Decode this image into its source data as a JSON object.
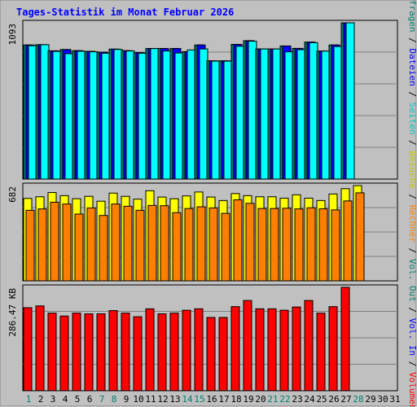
{
  "title": "Tages-Statistik im Monat Februar 2026",
  "colors": {
    "background": "#c0c0c0",
    "frame": "#808080",
    "title": "#0000ff",
    "hits": "#00806e",
    "files": "#0000ff",
    "pages": "#00ffff",
    "visits": "#ffff00",
    "sites": "#ff8000",
    "kbytes": "#ff0000",
    "weekend": "#00806e",
    "weekday": "#000000"
  },
  "right_legend": {
    "top": [
      {
        "text": "Anfragen",
        "color": "#00806e"
      },
      {
        "text": " / ",
        "color": "#000000"
      },
      {
        "text": "Dateien",
        "color": "#0000ff"
      },
      {
        "text": " / ",
        "color": "#000000"
      },
      {
        "text": "Seiten",
        "color": "#00c8c8"
      },
      {
        "text": " / ",
        "color": "#000000"
      },
      {
        "text": "Besuche",
        "color": "#c8c800"
      },
      {
        "text": " / ",
        "color": "#000000"
      },
      {
        "text": "Rechner",
        "color": "#ff8000"
      },
      {
        "text": " / ",
        "color": "#000000"
      },
      {
        "text": "Vol. Out",
        "color": "#00806e"
      },
      {
        "text": " / ",
        "color": "#000000"
      },
      {
        "text": "Vol. In",
        "color": "#0000ff"
      },
      {
        "text": " / ",
        "color": "#000000"
      },
      {
        "text": "Volumen",
        "color": "#ff0000"
      }
    ]
  },
  "chart_data": [
    {
      "type": "bar",
      "panel": "top",
      "y_label": "1093",
      "ylim": [
        0,
        1093
      ],
      "categories": [
        "1",
        "2",
        "3",
        "4",
        "5",
        "6",
        "7",
        "8",
        "9",
        "10",
        "11",
        "12",
        "13",
        "14",
        "15",
        "16",
        "17",
        "18",
        "19",
        "20",
        "21",
        "22",
        "23",
        "24",
        "25",
        "26",
        "27",
        "28"
      ],
      "series": [
        {
          "name": "Anfragen",
          "key": "hits",
          "values": [
            938,
            940,
            897,
            906,
            898,
            893,
            888,
            909,
            898,
            884,
            913,
            913,
            913,
            891,
            938,
            827,
            827,
            942,
            968,
            910,
            910,
            931,
            914,
            958,
            895,
            938,
            1093,
            0
          ]
        },
        {
          "name": "Dateien",
          "key": "files",
          "values": [
            938,
            940,
            897,
            906,
            898,
            893,
            888,
            909,
            898,
            884,
            913,
            913,
            913,
            891,
            938,
            827,
            827,
            942,
            968,
            910,
            910,
            931,
            914,
            958,
            895,
            938,
            1093,
            0
          ]
        },
        {
          "name": "Seiten",
          "key": "pages",
          "values": [
            933,
            940,
            893,
            877,
            894,
            890,
            880,
            907,
            896,
            880,
            913,
            896,
            882,
            903,
            910,
            825,
            825,
            929,
            964,
            910,
            910,
            890,
            905,
            954,
            895,
            927,
            1093,
            0
          ]
        }
      ]
    },
    {
      "type": "bar",
      "panel": "middle",
      "y_label": "682",
      "ylim": [
        0,
        682
      ],
      "categories": [
        "1",
        "2",
        "3",
        "4",
        "5",
        "6",
        "7",
        "8",
        "9",
        "10",
        "11",
        "12",
        "13",
        "14",
        "15",
        "16",
        "17",
        "18",
        "19",
        "20",
        "21",
        "22",
        "23",
        "24",
        "25",
        "26",
        "27",
        "28"
      ],
      "series": [
        {
          "name": "Besuche",
          "key": "visits",
          "values": [
            590,
            602,
            632,
            610,
            588,
            605,
            570,
            628,
            605,
            585,
            645,
            600,
            588,
            608,
            636,
            600,
            575,
            625,
            610,
            602,
            602,
            592,
            616,
            592,
            575,
            622,
            660,
            682
          ]
        },
        {
          "name": "Rechner",
          "key": "sites",
          "values": [
            505,
            515,
            563,
            550,
            478,
            522,
            468,
            550,
            534,
            505,
            540,
            538,
            488,
            518,
            530,
            522,
            483,
            580,
            555,
            518,
            518,
            520,
            515,
            523,
            516,
            508,
            572,
            630
          ]
        }
      ]
    },
    {
      "type": "bar",
      "panel": "bottom",
      "y_label": "286.47 KB",
      "ylim": [
        0,
        286.47
      ],
      "categories": [
        "1",
        "2",
        "3",
        "4",
        "5",
        "6",
        "7",
        "8",
        "9",
        "10",
        "11",
        "12",
        "13",
        "14",
        "15",
        "16",
        "17",
        "18",
        "19",
        "20",
        "21",
        "22",
        "23",
        "24",
        "25",
        "26",
        "27",
        "28"
      ],
      "series": [
        {
          "name": "Volumen",
          "key": "kbytes",
          "values": [
            230,
            235,
            215,
            207,
            215,
            213,
            213,
            222,
            215,
            205,
            227,
            213,
            215,
            223,
            227,
            203,
            203,
            233,
            250,
            227,
            227,
            223,
            232,
            250,
            215,
            233,
            286.47,
            0
          ]
        }
      ]
    }
  ],
  "day_colors": [
    "#00806e",
    "#000000",
    "#000000",
    "#000000",
    "#000000",
    "#000000",
    "#00806e",
    "#00806e",
    "#000000",
    "#000000",
    "#000000",
    "#000000",
    "#000000",
    "#00806e",
    "#00806e",
    "#000000",
    "#000000",
    "#000000",
    "#000000",
    "#000000",
    "#00806e",
    "#00806e",
    "#000000",
    "#000000",
    "#000000",
    "#000000",
    "#000000",
    "#00806e"
  ],
  "extra_days": [
    "29",
    "30",
    "31"
  ]
}
